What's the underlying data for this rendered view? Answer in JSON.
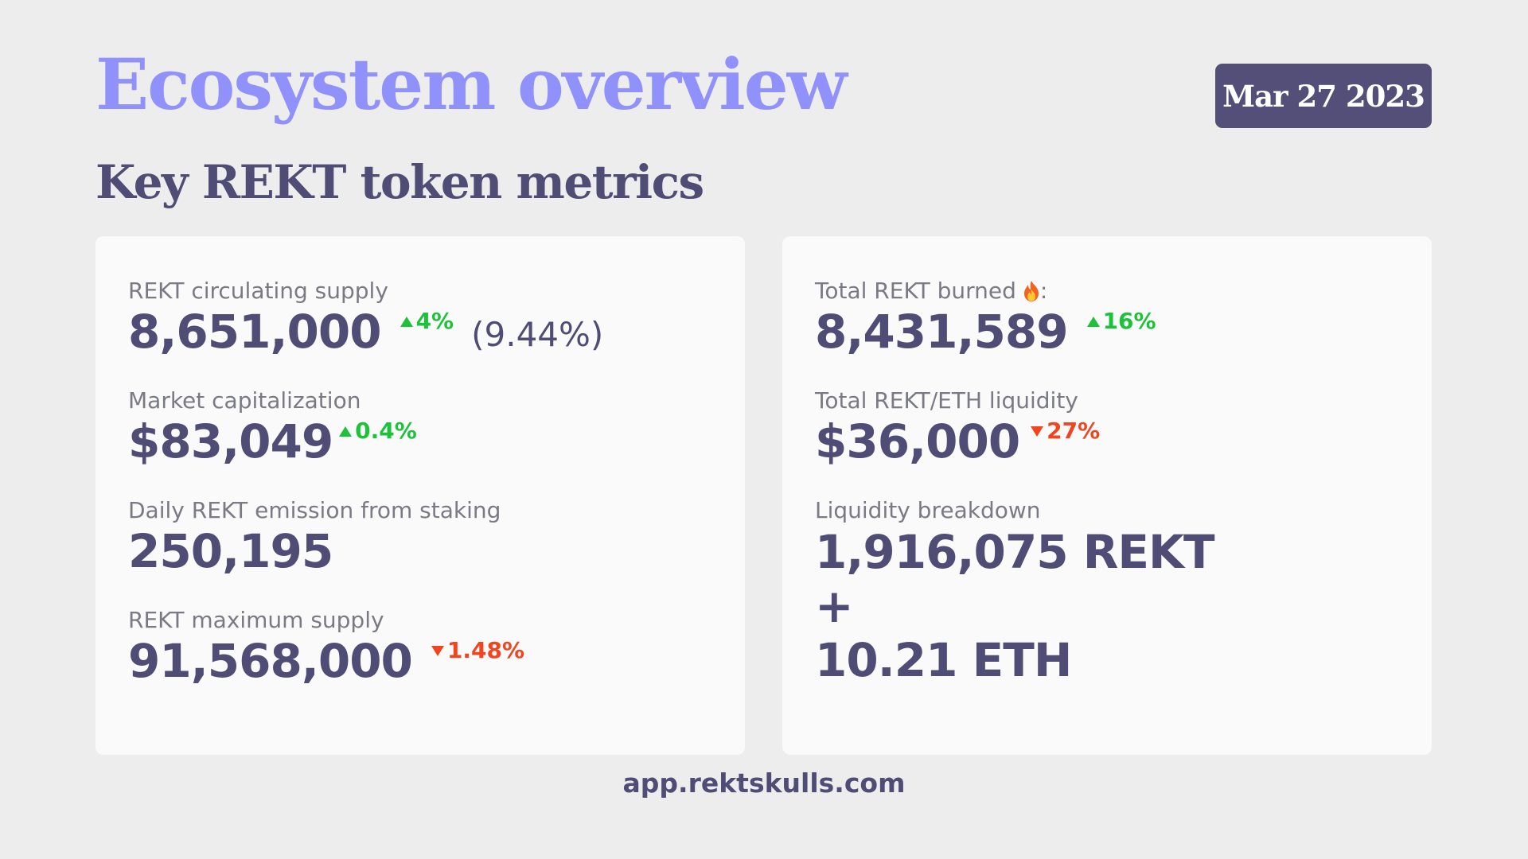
{
  "header": {
    "title": "Ecosystem overview",
    "date": "Mar 27 2023",
    "subtitle": "Key REKT token metrics"
  },
  "left_card": {
    "circulating_supply": {
      "label": "REKT circulating supply",
      "value": "8,651,000",
      "change": "4%",
      "change_direction": "up",
      "extra": "(9.44%)"
    },
    "market_cap": {
      "label": "Market capitalization",
      "value": "$83,049",
      "change": "0.4%",
      "change_direction": "up"
    },
    "daily_emission": {
      "label": "Daily REKT emission from staking",
      "value": "250,195"
    },
    "max_supply": {
      "label": "REKT maximum supply",
      "value": "91,568,000",
      "change": "1.48%",
      "change_direction": "down"
    }
  },
  "right_card": {
    "total_burned": {
      "label": "Total REKT burned",
      "label_suffix": ":",
      "icon": "fire-icon",
      "value": "8,431,589",
      "change": "16%",
      "change_direction": "up"
    },
    "liquidity": {
      "label": "Total REKT/ETH liquidity",
      "value": "$36,000",
      "change": "27%",
      "change_direction": "down"
    },
    "breakdown": {
      "label": "Liquidity breakdown",
      "rekt": "1,916,075 REKT",
      "plus": "+",
      "eth": "10.21 ETH"
    }
  },
  "footer": {
    "url": "app.rektskulls.com"
  },
  "colors": {
    "background": "#ededed",
    "card": "#fafafa",
    "title": "#9191fb",
    "text": "#4f4d75",
    "label": "#7a7a84",
    "badge": "#534f79",
    "up": "#1cc23a",
    "down": "#f2441f"
  }
}
